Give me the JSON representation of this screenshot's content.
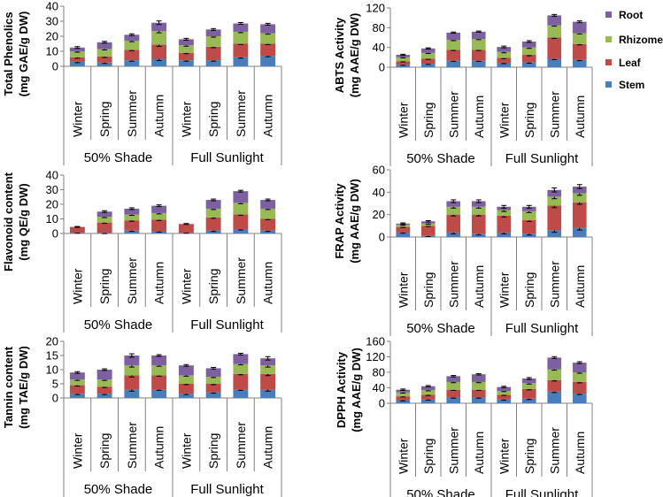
{
  "colors": {
    "Stem": "#4a7ebb",
    "Leaf": "#be4b48",
    "Rhizome": "#98b954",
    "Root": "#7d60a0"
  },
  "legend": {
    "items": [
      {
        "name": "Root",
        "color": "#7d60a0"
      },
      {
        "name": "Rhizome",
        "color": "#98b954"
      },
      {
        "name": "Leaf",
        "color": "#be4b48"
      },
      {
        "name": "Stem",
        "color": "#4a7ebb"
      }
    ]
  },
  "chart_data": [
    {
      "type": "bar",
      "stacked": true,
      "title": "",
      "ylabel": [
        "Total Phenolics",
        "(mg GAE/g DW)"
      ],
      "ylim": [
        0,
        40
      ],
      "yticks": [
        0,
        10,
        20,
        30,
        40
      ],
      "categories": [
        "Winter",
        "Spring",
        "Summer",
        "Autumn",
        "Winter",
        "Spring",
        "Summer",
        "Autumn"
      ],
      "groups": [
        "50% Shade",
        "Full Sunlight"
      ],
      "series": [
        {
          "name": "Stem",
          "values": [
            3,
            2.5,
            4,
            5,
            4,
            4,
            6,
            7
          ]
        },
        {
          "name": "Leaf",
          "values": [
            3,
            4,
            7,
            9.5,
            5,
            9,
            9,
            8
          ]
        },
        {
          "name": "Rhizome",
          "values": [
            4,
            5,
            6,
            9,
            5,
            7,
            8,
            7
          ]
        },
        {
          "name": "Root",
          "values": [
            2.5,
            4.5,
            4,
            5.5,
            4,
            4.5,
            5.5,
            6
          ]
        }
      ],
      "error": [
        1,
        1,
        1,
        2,
        1,
        1,
        1,
        1
      ]
    },
    {
      "type": "bar",
      "stacked": true,
      "title": "",
      "ylabel": [
        "ABTS Activity",
        "(mg AAE/g DW)"
      ],
      "ylim": [
        0,
        120
      ],
      "yticks": [
        0,
        40,
        80,
        120
      ],
      "categories": [
        "Winter",
        "Spring",
        "Summer",
        "Autumn",
        "Winter",
        "Spring",
        "Summer",
        "Autumn"
      ],
      "groups": [
        "50% Shade",
        "Full Sunlight"
      ],
      "series": [
        {
          "name": "Stem",
          "values": [
            5,
            7,
            13,
            13,
            9,
            10,
            17,
            15
          ]
        },
        {
          "name": "Leaf",
          "values": [
            7,
            10,
            22,
            22,
            10,
            15,
            43,
            32
          ]
        },
        {
          "name": "Rhizome",
          "values": [
            8,
            12,
            20,
            22,
            12,
            15,
            25,
            22
          ]
        },
        {
          "name": "Root",
          "values": [
            5,
            9,
            15,
            15,
            10,
            12,
            20,
            23
          ]
        }
      ],
      "error": [
        2,
        2,
        2,
        2,
        3,
        3,
        3,
        3
      ]
    },
    {
      "type": "bar",
      "stacked": true,
      "title": "",
      "ylabel": [
        "Flavonoid content",
        "(mg QE/g DW)"
      ],
      "ylim": [
        0,
        40
      ],
      "yticks": [
        0,
        10,
        20,
        30,
        40
      ],
      "categories": [
        "Winter",
        "Spring",
        "Summer",
        "Autumn",
        "Winter",
        "Spring",
        "Summer",
        "Autumn"
      ],
      "groups": [
        "50% Shade",
        "Full Sunlight"
      ],
      "series": [
        {
          "name": "Stem",
          "values": [
            0.5,
            0.5,
            2,
            1.5,
            0.5,
            2,
            3,
            2
          ]
        },
        {
          "name": "Leaf",
          "values": [
            4,
            7,
            7,
            8,
            6,
            9,
            10,
            8
          ]
        },
        {
          "name": "Rhizome",
          "values": [
            0,
            4,
            4,
            4.5,
            0,
            6,
            8,
            7
          ]
        },
        {
          "name": "Root",
          "values": [
            0,
            3.5,
            4,
            5,
            0,
            6,
            8,
            6
          ]
        }
      ],
      "error": [
        0.5,
        1,
        1,
        1,
        0.5,
        1,
        1,
        1
      ]
    },
    {
      "type": "bar",
      "stacked": true,
      "title": "",
      "ylabel": [
        "FRAP Activity",
        "(mg AAE/g DW)"
      ],
      "ylim": [
        0,
        60
      ],
      "yticks": [
        0,
        20,
        40,
        60
      ],
      "categories": [
        "Winter",
        "Spring",
        "Summer",
        "Autumn",
        "Winter",
        "Spring",
        "Summer",
        "Autumn"
      ],
      "groups": [
        "50% Shade",
        "Full Sunlight"
      ],
      "series": [
        {
          "name": "Stem",
          "values": [
            4,
            1,
            4,
            3,
            4,
            3,
            6,
            8
          ]
        },
        {
          "name": "Leaf",
          "values": [
            5,
            9,
            16,
            17,
            15,
            12,
            22,
            23
          ]
        },
        {
          "name": "Rhizome",
          "values": [
            2,
            2,
            7,
            7,
            5,
            8,
            8,
            8
          ]
        },
        {
          "name": "Root",
          "values": [
            1,
            2,
            5,
            5,
            3,
            4,
            6,
            6
          ]
        }
      ],
      "error": [
        1,
        1,
        2,
        2,
        2,
        2,
        3,
        3
      ]
    },
    {
      "type": "bar",
      "stacked": true,
      "title": "",
      "ylabel": [
        "Tannin content",
        "(mg TAE/g DW)"
      ],
      "ylim": [
        0,
        20
      ],
      "yticks": [
        0,
        5,
        10,
        15,
        20
      ],
      "categories": [
        "Winter",
        "Spring",
        "Summer",
        "Autumn",
        "Winter",
        "Spring",
        "Summer",
        "Autumn"
      ],
      "groups": [
        "50% Shade",
        "Full Sunlight"
      ],
      "series": [
        {
          "name": "Stem",
          "values": [
            1.5,
            1.5,
            3,
            3,
            1.5,
            2,
            3,
            3
          ]
        },
        {
          "name": "Leaf",
          "values": [
            3,
            2.5,
            5,
            5,
            3.5,
            3,
            5.5,
            5.5
          ]
        },
        {
          "name": "Rhizome",
          "values": [
            2,
            2.5,
            3.5,
            3.5,
            3,
            2.5,
            3.5,
            3
          ]
        },
        {
          "name": "Root",
          "values": [
            2.5,
            3.5,
            3.5,
            3.5,
            3.5,
            3,
            3.5,
            2.5
          ]
        }
      ],
      "error": [
        0.5,
        0.5,
        1,
        0.5,
        0.5,
        0.5,
        0.5,
        1
      ]
    },
    {
      "type": "bar",
      "stacked": true,
      "title": "",
      "ylabel": [
        "DPPH Activity",
        "(mg AAE/g DW)"
      ],
      "ylim": [
        0,
        160
      ],
      "yticks": [
        0,
        40,
        80,
        120,
        160
      ],
      "categories": [
        "Winter",
        "Spring",
        "Summer",
        "Autumn",
        "Winter",
        "Spring",
        "Summer",
        "Autumn"
      ],
      "groups": [
        "50% Shade",
        "Full Sunlight"
      ],
      "series": [
        {
          "name": "Stem",
          "values": [
            8,
            10,
            15,
            15,
            10,
            12,
            30,
            25
          ]
        },
        {
          "name": "Leaf",
          "values": [
            10,
            12,
            20,
            20,
            12,
            25,
            30,
            30
          ]
        },
        {
          "name": "Rhizome",
          "values": [
            10,
            12,
            20,
            20,
            10,
            15,
            28,
            25
          ]
        },
        {
          "name": "Root",
          "values": [
            7,
            10,
            15,
            20,
            10,
            12,
            30,
            25
          ]
        }
      ],
      "error": [
        3,
        3,
        3,
        3,
        3,
        4,
        4,
        4
      ]
    }
  ]
}
